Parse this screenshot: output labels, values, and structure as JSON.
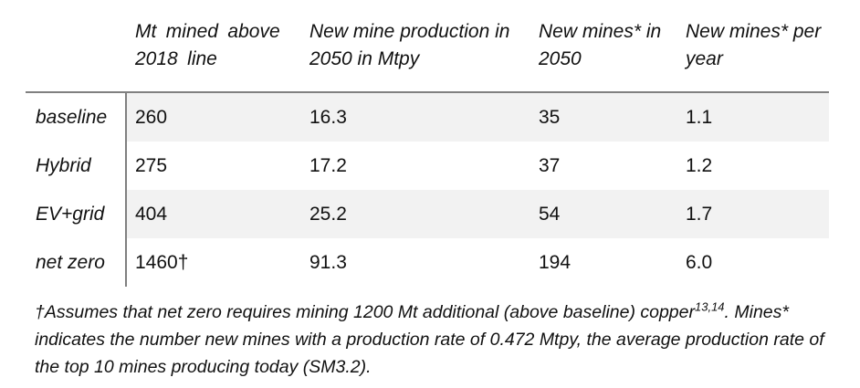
{
  "table": {
    "columns": [
      "Mt mined above 2018 line",
      "New mine production in 2050 in Mtpy",
      "New mines* in 2050",
      "New mines* per year"
    ],
    "rows": [
      {
        "label": "baseline",
        "values": [
          "260",
          "16.3",
          "35",
          "1.1"
        ]
      },
      {
        "label": "Hybrid",
        "values": [
          "275",
          "17.2",
          "37",
          "1.2"
        ]
      },
      {
        "label": "EV+grid",
        "values": [
          "404",
          "25.2",
          "54",
          "1.7"
        ]
      },
      {
        "label": "net zero",
        "values": [
          "1460†",
          "91.3",
          "194",
          "6.0"
        ]
      }
    ]
  },
  "footnote": {
    "part1": "†Assumes that net zero requires mining 1200 Mt additional (above baseline) copper",
    "superscript": "13,14",
    "part2": ". Mines* indicates the number new mines with a production rate of 0.472 Mtpy, the average production rate of the top 10 mines producing today (SM3.2)."
  },
  "colors": {
    "row_shading": "#f2f2f2",
    "rule_gray": "#808080",
    "text": "#111111",
    "background": "#ffffff"
  },
  "chart_data": {
    "type": "table",
    "columns": [
      "",
      "Mt mined above 2018 line",
      "New mine production in 2050 in Mtpy",
      "New mines* in 2050",
      "New mines* per year"
    ],
    "rows": [
      [
        "baseline",
        260,
        16.3,
        35,
        1.1
      ],
      [
        "Hybrid",
        275,
        17.2,
        37,
        1.2
      ],
      [
        "EV+grid",
        404,
        25.2,
        54,
        1.7
      ],
      [
        "net zero",
        1460,
        91.3,
        194,
        6.0
      ]
    ],
    "notes": "net zero Mt value marked with dagger footnote; footnote explains 1200 Mt additional copper assumption and 0.472 Mtpy average mine production rate"
  }
}
